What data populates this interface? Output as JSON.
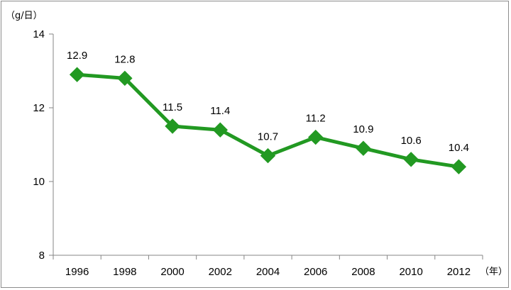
{
  "chart_data": {
    "type": "line",
    "title": "",
    "xlabel": "",
    "ylabel": "",
    "y_unit": "（g/日）",
    "x_unit": "（年）",
    "categories": [
      "1996",
      "1998",
      "2000",
      "2002",
      "2004",
      "2006",
      "2008",
      "2010",
      "2012"
    ],
    "series": [
      {
        "values": [
          12.9,
          12.8,
          11.5,
          11.4,
          10.7,
          11.2,
          10.9,
          10.6,
          10.4
        ],
        "labels": [
          "12.9",
          "12.8",
          "11.5",
          "11.4",
          "10.7",
          "11.2",
          "10.9",
          "10.6",
          "10.4"
        ],
        "color": "#229922",
        "marker": "diamond"
      }
    ],
    "ylim": [
      8,
      14
    ],
    "yticks": [
      "8",
      "10",
      "12",
      "14"
    ],
    "grid": false,
    "legend": "none"
  }
}
